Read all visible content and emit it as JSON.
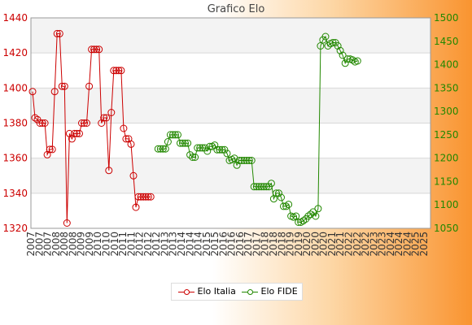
{
  "chart_data": {
    "type": "line",
    "title": "Grafico Elo",
    "y_left": {
      "min": 1320,
      "max": 1440,
      "step": 20,
      "color": "#cc0000"
    },
    "y_right": {
      "min": 1050,
      "max": 1500,
      "step": 50,
      "color": "#228800"
    },
    "grid": true,
    "legend_position": "bottom-center",
    "n_points": 162,
    "x_tick_labels": [
      "2007",
      "2008",
      "2009",
      "2010",
      "2011",
      "2012",
      "2013",
      "2014",
      "2015",
      "2016",
      "2017",
      "2018",
      "2019",
      "2020",
      "2021",
      "2022",
      "2023",
      "2024",
      "2025"
    ],
    "series": [
      {
        "name": "Elo Italia",
        "axis": "left",
        "color": "#cc0000",
        "start_index": 0,
        "values": [
          1398,
          1383,
          1382,
          1380,
          1380,
          1380,
          1362,
          1365,
          1365,
          1398,
          1431,
          1431,
          1401,
          1401,
          1323,
          1374,
          1371,
          1374,
          1374,
          1374,
          1380,
          1380,
          1380,
          1401,
          1422,
          1422,
          1422,
          1422,
          1380,
          1383,
          1383,
          1353,
          1386,
          1410,
          1410,
          1410,
          1410,
          1377,
          1371,
          1371,
          1368,
          1350,
          1332,
          1338,
          1338,
          1338,
          1338,
          1338,
          1338
        ]
      },
      {
        "name": "Elo FIDE",
        "axis": "right",
        "color": "#228800",
        "start_index": 51,
        "values": [
          1220,
          1220,
          1220,
          1220,
          1235,
          1250,
          1250,
          1250,
          1250,
          1232,
          1232,
          1232,
          1232,
          1207,
          1202,
          1202,
          1222,
          1222,
          1222,
          1222,
          1215,
          1225,
          1225,
          1228,
          1218,
          1218,
          1218,
          1218,
          1210,
          1195,
          1197,
          1200,
          1185,
          1195,
          1195,
          1195,
          1195,
          1195,
          1195,
          1139,
          1139,
          1139,
          1139,
          1139,
          1139,
          1139,
          1146,
          1113,
          1125,
          1125,
          1116,
          1097,
          1097,
          1101,
          1076,
          1074,
          1076,
          1063,
          1063,
          1066,
          1070,
          1076,
          1080,
          1085,
          1076,
          1092,
          1440,
          1453,
          1460,
          1440,
          1445,
          1447,
          1447,
          1440,
          1430,
          1420,
          1403,
          1412,
          1412,
          1410,
          1406,
          1408
        ]
      }
    ]
  }
}
